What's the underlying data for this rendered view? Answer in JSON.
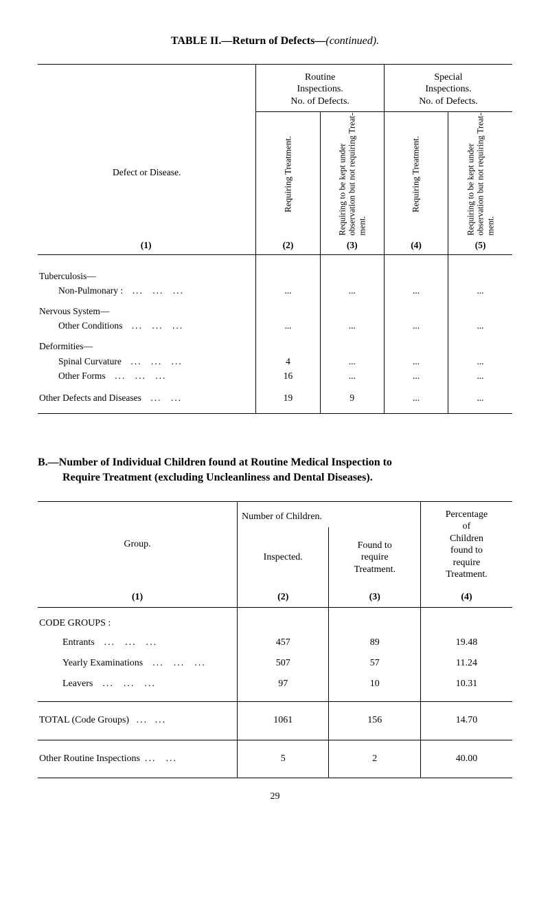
{
  "title": {
    "prefix": "TABLE II.—Return of Defects—",
    "suffix_italic": "(continued)."
  },
  "table1": {
    "defect_label": "Defect or Disease.",
    "routine_heading": "Routine\nInspections.\nNo. of Defects.",
    "special_heading": "Special\nInspections.\nNo. of Defects.",
    "col2_label": "Requiring Treatment.",
    "col3_label": "Requiring to be kept under observation but not requiring Treat- ment.",
    "col4_label": "Requiring Treatment.",
    "col5_label": "Requiring to be kept under observation but not requiring Treat- ment.",
    "colnums": [
      "(1)",
      "(2)",
      "(3)",
      "(4)",
      "(5)"
    ],
    "rows": [
      {
        "type": "group",
        "label": "Tuberculosis—"
      },
      {
        "type": "data",
        "label": "Non-Pulmonary :",
        "values": [
          "...",
          "...",
          "...",
          "..."
        ]
      },
      {
        "type": "group",
        "label": "Nervous System—"
      },
      {
        "type": "data",
        "label": "Other Conditions",
        "values": [
          "...",
          "...",
          "...",
          "..."
        ]
      },
      {
        "type": "group",
        "label": "Deformities—"
      },
      {
        "type": "data",
        "label": "Spinal Curvature",
        "values": [
          "4",
          "...",
          "...",
          "..."
        ]
      },
      {
        "type": "data",
        "label": "Other Forms",
        "values": [
          "16",
          "...",
          "...",
          "..."
        ]
      },
      {
        "type": "data",
        "label": "Other Defects and Diseases",
        "noindent": true,
        "spacetop": true,
        "values": [
          "19",
          "9",
          "...",
          "..."
        ]
      }
    ]
  },
  "sectionB": {
    "lead": "B.",
    "rest1": "—Number of Individual Children found at Routine Medical Inspection to",
    "line2": "Require Treatment (excluding Uncleanliness and Dental Diseases)."
  },
  "table2": {
    "group_label": "Group.",
    "numchildren_label": "Number of Children.",
    "inspected_label": "Inspected.",
    "found_label": "Found to\nrequire\nTreatment.",
    "pct_label": "Percentage\nof\nChildren\nfound to\nrequire\nTreatment.",
    "colnums": [
      "(1)",
      "(2)",
      "(3)",
      "(4)"
    ],
    "section_heading": "CODE GROUPS :",
    "rows": [
      {
        "label": "Entrants",
        "inspected": "457",
        "found": "89",
        "pct": "19.48"
      },
      {
        "label": "Yearly Examinations",
        "inspected": "507",
        "found": "57",
        "pct": "11.24"
      },
      {
        "label": "Leavers",
        "inspected": "97",
        "found": "10",
        "pct": "10.31"
      }
    ],
    "total": {
      "label": "TOTAL (Code Groups)",
      "inspected": "1061",
      "found": "156",
      "pct": "14.70"
    },
    "other": {
      "label": "Other Routine Inspections",
      "inspected": "5",
      "found": "2",
      "pct": "40.00"
    }
  },
  "page_number": "29"
}
